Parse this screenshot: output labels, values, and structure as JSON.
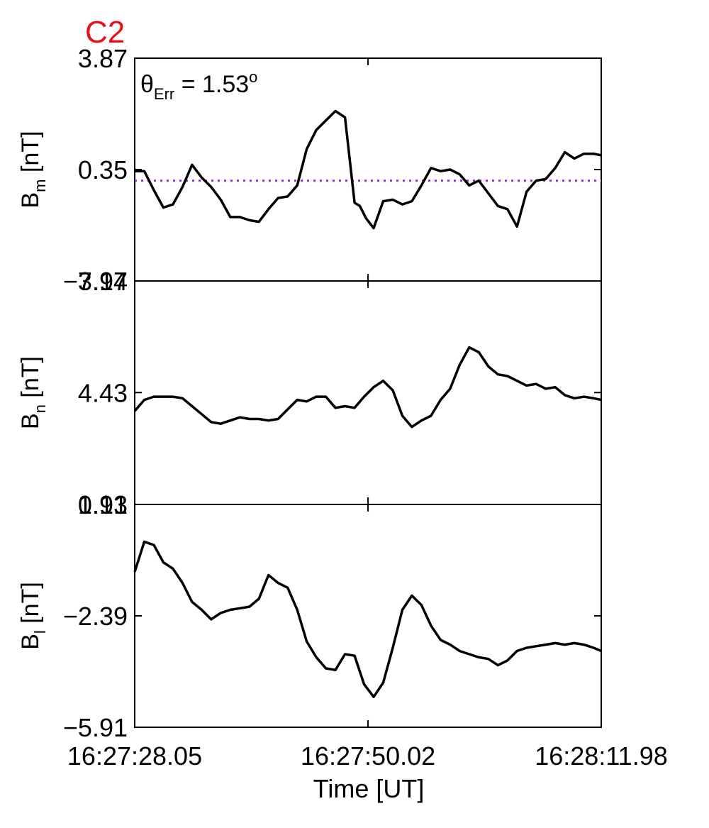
{
  "chart_data": {
    "type": "line",
    "title": "C2",
    "title_color": "#e8111b",
    "line_color": "#000000",
    "ref_line_color": "#9b30d9",
    "xlabel": "Time [UT]",
    "x_tick_labels": [
      "16:27:28.05",
      "16:27:50.02",
      "16:28:11.98"
    ],
    "xlim": [
      0,
      43.93
    ],
    "x_ticks": [
      0,
      21.97,
      43.93
    ],
    "annotation": {
      "theta": "θ",
      "sub": "Err",
      "text": " =  1.53",
      "sup": "o"
    },
    "panels": [
      {
        "id": "bm",
        "ylabel_main": "B",
        "ylabel_sub": "m",
        "ylabel_unit": " [nT]",
        "ylim": [
          -3.17,
          3.87
        ],
        "y_ticks": [
          -3.17,
          0.35,
          3.87
        ],
        "y_tick_labels": [
          "−3.17",
          "0.35",
          "3.87"
        ],
        "ref_value": 0.0,
        "x": [
          0,
          0.9,
          1.8,
          2.7,
          3.6,
          4.5,
          5.4,
          6.3,
          7.2,
          8.1,
          9.0,
          9.9,
          10.8,
          11.7,
          12.6,
          13.5,
          14.4,
          15.3,
          16.2,
          17.1,
          18.0,
          18.9,
          19.8,
          20.3,
          20.7,
          21.2,
          21.8,
          22.5,
          23.4,
          24.3,
          25.2,
          26.1,
          27.0,
          27.9,
          28.8,
          29.7,
          30.6,
          31.5,
          32.4,
          33.3,
          34.2,
          35.1,
          36.0,
          36.9,
          37.8,
          38.7,
          39.6,
          40.5,
          41.4,
          42.3,
          43.2,
          43.93
        ],
        "y": [
          0.3,
          0.3,
          -0.3,
          -0.85,
          -0.75,
          -0.2,
          0.5,
          0.1,
          -0.2,
          -0.6,
          -1.15,
          -1.15,
          -1.25,
          -1.3,
          -0.9,
          -0.55,
          -0.5,
          -0.15,
          1.0,
          1.6,
          1.9,
          2.2,
          2.0,
          0.5,
          -0.7,
          -0.8,
          -1.2,
          -1.5,
          -0.65,
          -0.6,
          -0.75,
          -0.65,
          -0.15,
          0.4,
          0.3,
          0.35,
          0.2,
          -0.15,
          0.0,
          -0.4,
          -0.8,
          -0.9,
          -1.45,
          -0.35,
          0.0,
          0.05,
          0.4,
          0.9,
          0.7,
          0.85,
          0.85,
          0.8
        ]
      },
      {
        "id": "bn",
        "ylabel_main": "B",
        "ylabel_sub": "n",
        "ylabel_unit": " [nT]",
        "ylim": [
          0.91,
          7.94
        ],
        "y_ticks": [
          0.91,
          4.43,
          7.94
        ],
        "y_tick_labels": [
          "0.91",
          "4.43",
          "7.94"
        ],
        "x": [
          0,
          0.9,
          1.8,
          2.7,
          3.6,
          4.5,
          5.4,
          6.3,
          7.2,
          8.1,
          9.0,
          9.9,
          10.8,
          11.7,
          12.6,
          13.5,
          14.4,
          15.3,
          16.2,
          17.1,
          18.0,
          18.9,
          19.8,
          20.7,
          21.6,
          22.5,
          23.4,
          24.3,
          25.2,
          26.1,
          27.0,
          27.9,
          28.8,
          29.7,
          30.6,
          31.5,
          32.4,
          33.3,
          34.2,
          35.1,
          36.0,
          36.9,
          37.8,
          38.7,
          39.6,
          40.5,
          41.4,
          42.3,
          43.2,
          43.93
        ],
        "y": [
          3.85,
          4.2,
          4.3,
          4.3,
          4.3,
          4.25,
          4.0,
          3.75,
          3.5,
          3.45,
          3.55,
          3.65,
          3.6,
          3.6,
          3.55,
          3.6,
          3.9,
          4.2,
          4.15,
          4.3,
          4.3,
          3.95,
          4.0,
          3.95,
          4.3,
          4.6,
          4.8,
          4.5,
          3.7,
          3.35,
          3.55,
          3.7,
          4.2,
          4.55,
          5.3,
          5.85,
          5.7,
          5.25,
          5.0,
          4.95,
          4.8,
          4.65,
          4.7,
          4.55,
          4.6,
          4.35,
          4.25,
          4.3,
          4.25,
          4.2
        ]
      },
      {
        "id": "bl",
        "ylabel_main": "B",
        "ylabel_sub": "l",
        "ylabel_unit": " [nT]",
        "ylim": [
          -5.91,
          1.13
        ],
        "y_ticks": [
          -5.91,
          -2.39,
          1.13
        ],
        "y_tick_labels": [
          "−5.91",
          "−2.39",
          "1.13"
        ],
        "x": [
          0,
          0.9,
          1.8,
          2.7,
          3.6,
          4.5,
          5.4,
          6.3,
          7.2,
          8.1,
          9.0,
          9.9,
          10.8,
          11.7,
          12.6,
          13.5,
          14.4,
          15.3,
          16.2,
          17.1,
          18.0,
          18.9,
          19.8,
          20.7,
          21.6,
          22.5,
          23.4,
          24.3,
          25.2,
          26.1,
          27.0,
          27.9,
          28.8,
          29.7,
          30.6,
          31.5,
          32.4,
          33.3,
          34.2,
          35.1,
          36.0,
          36.9,
          37.8,
          38.7,
          39.6,
          40.5,
          41.4,
          42.3,
          43.2,
          43.93
        ],
        "y": [
          -1.0,
          -0.05,
          -0.15,
          -0.7,
          -0.9,
          -1.35,
          -1.95,
          -2.2,
          -2.5,
          -2.3,
          -2.2,
          -2.15,
          -2.1,
          -1.85,
          -1.1,
          -1.35,
          -1.5,
          -2.2,
          -3.2,
          -3.7,
          -4.05,
          -4.1,
          -3.6,
          -3.65,
          -4.55,
          -4.95,
          -4.5,
          -3.4,
          -2.2,
          -1.75,
          -2.05,
          -2.7,
          -3.15,
          -3.3,
          -3.5,
          -3.6,
          -3.7,
          -3.75,
          -3.95,
          -3.8,
          -3.5,
          -3.4,
          -3.35,
          -3.3,
          -3.25,
          -3.3,
          -3.25,
          -3.3,
          -3.4,
          -3.5
        ]
      }
    ]
  }
}
